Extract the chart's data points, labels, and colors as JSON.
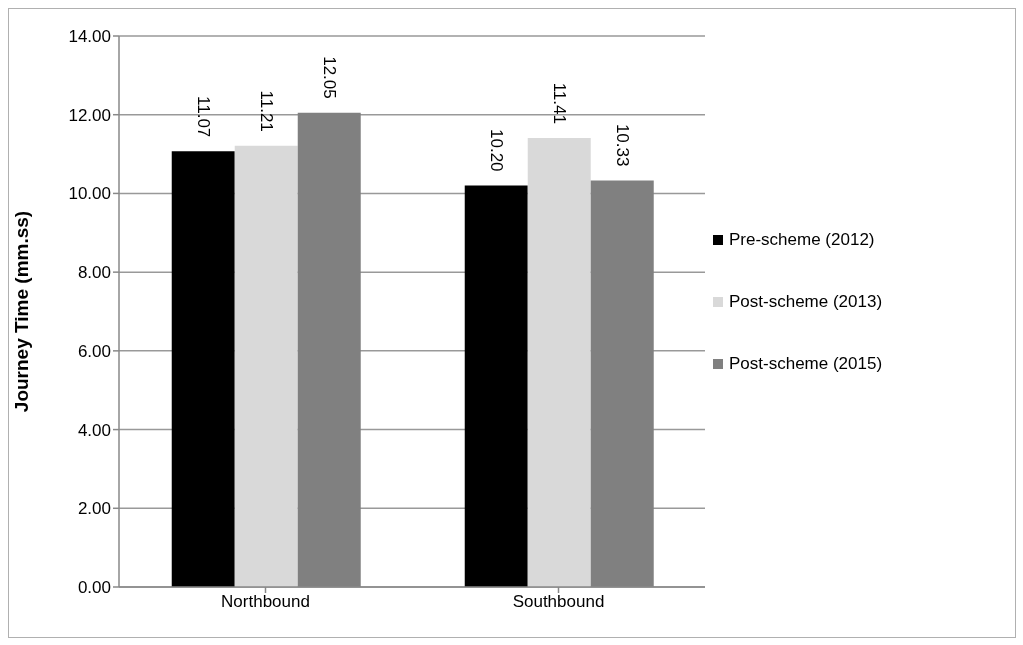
{
  "chart_data": {
    "type": "bar",
    "ylabel": "Journey Time (mm.ss)",
    "categories": [
      "Northbound",
      "Southbound"
    ],
    "series": [
      {
        "name": "Pre-scheme (2012)",
        "color": "#000000",
        "values": [
          11.07,
          10.2
        ],
        "value_labels": [
          "11.07",
          "10.20"
        ]
      },
      {
        "name": "Post-scheme (2013)",
        "color": "#d9d9d9",
        "values": [
          11.21,
          11.41
        ],
        "value_labels": [
          "11.21",
          "11.41"
        ]
      },
      {
        "name": "Post-scheme (2015)",
        "color": "#808080",
        "values": [
          12.05,
          10.33
        ],
        "value_labels": [
          "12.05",
          "10.33"
        ]
      }
    ],
    "ylim": [
      0,
      14
    ],
    "yticks": [
      {
        "value": 0,
        "label": "0.00"
      },
      {
        "value": 2,
        "label": "2.00"
      },
      {
        "value": 4,
        "label": "4.00"
      },
      {
        "value": 6,
        "label": "6.00"
      },
      {
        "value": 8,
        "label": "8.00"
      },
      {
        "value": 10,
        "label": "10.00"
      },
      {
        "value": 12,
        "label": "12.00"
      },
      {
        "value": 14,
        "label": "14.00"
      }
    ],
    "grid": "y",
    "legend": "right"
  }
}
